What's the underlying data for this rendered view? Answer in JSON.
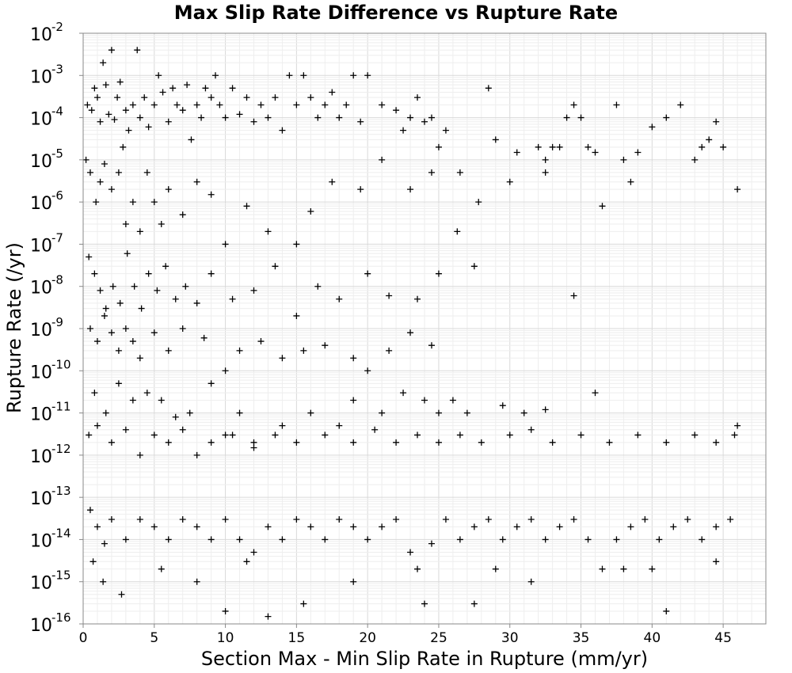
{
  "chart_data": {
    "type": "scatter",
    "title": "Max Slip Rate Difference vs Rupture Rate",
    "xlabel": "Section Max - Min Slip Rate in Rupture (mm/yr)",
    "ylabel": "Rupture Rate (/yr)",
    "xlim": [
      0,
      48
    ],
    "ylim": [
      1e-16,
      0.01
    ],
    "yscale": "log",
    "grid": true,
    "marker": "plus",
    "marker_color": "#000000",
    "x_ticks": [
      0,
      5,
      10,
      15,
      20,
      25,
      30,
      35,
      40,
      45
    ],
    "x_tick_labels": [
      "0",
      "5",
      "10",
      "15",
      "20",
      "25",
      "30",
      "35",
      "40",
      "45"
    ],
    "y_ticks": [
      {
        "value": 0.01,
        "base": "10",
        "exp": "-2"
      },
      {
        "value": 0.001,
        "base": "10",
        "exp": "-3"
      },
      {
        "value": 0.0001,
        "base": "10",
        "exp": "-4"
      },
      {
        "value": 1e-05,
        "base": "10",
        "exp": "-5"
      },
      {
        "value": 1e-06,
        "base": "10",
        "exp": "-6"
      },
      {
        "value": 1e-07,
        "base": "10",
        "exp": "-7"
      },
      {
        "value": 1e-08,
        "base": "10",
        "exp": "-8"
      },
      {
        "value": 1e-09,
        "base": "10",
        "exp": "-9"
      },
      {
        "value": 1e-10,
        "base": "10",
        "exp": "-10"
      },
      {
        "value": 1e-11,
        "base": "10",
        "exp": "-11"
      },
      {
        "value": 1e-12,
        "base": "10",
        "exp": "-12"
      },
      {
        "value": 1e-13,
        "base": "10",
        "exp": "-13"
      },
      {
        "value": 1e-14,
        "base": "10",
        "exp": "-14"
      },
      {
        "value": 1e-15,
        "base": "10",
        "exp": "-15"
      },
      {
        "value": 1e-16,
        "base": "10",
        "exp": "-16"
      }
    ],
    "points": [
      [
        0.3,
        0.0002
      ],
      [
        0.6,
        0.00015
      ],
      [
        0.8,
        0.0005
      ],
      [
        1.0,
        0.0003
      ],
      [
        1.2,
        8e-05
      ],
      [
        1.4,
        0.002
      ],
      [
        1.6,
        0.0006
      ],
      [
        1.8,
        0.00012
      ],
      [
        2.0,
        0.004
      ],
      [
        2.2,
        9e-05
      ],
      [
        2.4,
        0.0003
      ],
      [
        2.6,
        0.0007
      ],
      [
        2.8,
        2e-05
      ],
      [
        3.0,
        0.00015
      ],
      [
        3.2,
        5e-05
      ],
      [
        3.5,
        0.0002
      ],
      [
        3.8,
        0.004
      ],
      [
        4.0,
        0.0001
      ],
      [
        4.3,
        0.0003
      ],
      [
        4.6,
        6e-05
      ],
      [
        5.0,
        0.0002
      ],
      [
        5.3,
        0.001
      ],
      [
        5.6,
        0.0004
      ],
      [
        6.0,
        8e-05
      ],
      [
        6.3,
        0.0005
      ],
      [
        6.6,
        0.0002
      ],
      [
        7.0,
        0.00015
      ],
      [
        7.3,
        0.0006
      ],
      [
        7.6,
        3e-05
      ],
      [
        8.0,
        0.0002
      ],
      [
        8.3,
        0.0001
      ],
      [
        8.6,
        0.0005
      ],
      [
        9.0,
        0.0003
      ],
      [
        9.3,
        0.001
      ],
      [
        9.6,
        0.0002
      ],
      [
        10.0,
        0.0001
      ],
      [
        10.5,
        0.0005
      ],
      [
        11.0,
        0.00012
      ],
      [
        11.5,
        0.0003
      ],
      [
        12.0,
        8e-05
      ],
      [
        12.5,
        0.0002
      ],
      [
        13.0,
        0.0001
      ],
      [
        13.5,
        0.0003
      ],
      [
        14.0,
        5e-05
      ],
      [
        14.5,
        0.001
      ],
      [
        15.0,
        0.0002
      ],
      [
        15.5,
        0.001
      ],
      [
        16.0,
        0.0003
      ],
      [
        16.5,
        0.0001
      ],
      [
        17.0,
        0.0002
      ],
      [
        17.5,
        0.0004
      ],
      [
        18.0,
        0.0001
      ],
      [
        18.5,
        0.0002
      ],
      [
        19.0,
        0.001
      ],
      [
        19.5,
        8e-05
      ],
      [
        20.0,
        0.001
      ],
      [
        21.0,
        0.0002
      ],
      [
        22.0,
        0.00015
      ],
      [
        22.5,
        5e-05
      ],
      [
        23.0,
        0.0001
      ],
      [
        23.5,
        0.0003
      ],
      [
        24.0,
        8e-05
      ],
      [
        24.5,
        0.0001
      ],
      [
        25.0,
        2e-05
      ],
      [
        25.5,
        5e-05
      ],
      [
        26.5,
        5e-06
      ],
      [
        28.5,
        0.0005
      ],
      [
        29.0,
        3e-05
      ],
      [
        30.5,
        1.5e-05
      ],
      [
        32.0,
        2e-05
      ],
      [
        32.5,
        1e-05
      ],
      [
        33.0,
        2e-05
      ],
      [
        33.5,
        2e-05
      ],
      [
        34.0,
        0.0001
      ],
      [
        34.5,
        0.0002
      ],
      [
        35.0,
        0.0001
      ],
      [
        35.5,
        2e-05
      ],
      [
        36.0,
        1.5e-05
      ],
      [
        37.5,
        0.0002
      ],
      [
        38.0,
        1e-05
      ],
      [
        39.0,
        1.5e-05
      ],
      [
        40.0,
        6e-05
      ],
      [
        41.0,
        0.0001
      ],
      [
        42.0,
        0.0002
      ],
      [
        43.0,
        1e-05
      ],
      [
        43.5,
        2e-05
      ],
      [
        44.0,
        3e-05
      ],
      [
        44.5,
        8e-05
      ],
      [
        45.0,
        2e-05
      ],
      [
        46.0,
        2e-06
      ],
      [
        0.2,
        1e-05
      ],
      [
        0.5,
        5e-06
      ],
      [
        0.9,
        1e-06
      ],
      [
        1.2,
        3e-06
      ],
      [
        1.5,
        8e-06
      ],
      [
        2.0,
        2e-06
      ],
      [
        2.5,
        5e-06
      ],
      [
        3.0,
        3e-07
      ],
      [
        3.5,
        1e-06
      ],
      [
        4.0,
        2e-07
      ],
      [
        4.5,
        5e-06
      ],
      [
        5.0,
        1e-06
      ],
      [
        5.5,
        3e-07
      ],
      [
        6.0,
        2e-06
      ],
      [
        7.0,
        5e-07
      ],
      [
        8.0,
        3e-06
      ],
      [
        9.0,
        1.5e-06
      ],
      [
        10.0,
        1e-07
      ],
      [
        11.5,
        8e-07
      ],
      [
        13.0,
        2e-07
      ],
      [
        15.0,
        1e-07
      ],
      [
        16.0,
        6e-07
      ],
      [
        17.5,
        3e-06
      ],
      [
        19.5,
        2e-06
      ],
      [
        21.0,
        1e-05
      ],
      [
        23.0,
        2e-06
      ],
      [
        24.5,
        5e-06
      ],
      [
        26.3,
        2e-07
      ],
      [
        27.8,
        1e-06
      ],
      [
        30.0,
        3e-06
      ],
      [
        32.5,
        5e-06
      ],
      [
        36.5,
        8e-07
      ],
      [
        38.5,
        3e-06
      ],
      [
        0.4,
        5e-08
      ],
      [
        0.8,
        2e-08
      ],
      [
        1.2,
        8e-09
      ],
      [
        1.6,
        3e-09
      ],
      [
        2.1,
        1e-08
      ],
      [
        2.6,
        4e-09
      ],
      [
        3.1,
        6e-08
      ],
      [
        3.6,
        1e-08
      ],
      [
        4.1,
        3e-09
      ],
      [
        4.6,
        2e-08
      ],
      [
        5.2,
        8e-09
      ],
      [
        5.8,
        3e-08
      ],
      [
        6.5,
        5e-09
      ],
      [
        7.2,
        1e-08
      ],
      [
        8.0,
        4e-09
      ],
      [
        9.0,
        2e-08
      ],
      [
        10.5,
        5e-09
      ],
      [
        12.0,
        8e-09
      ],
      [
        13.5,
        3e-08
      ],
      [
        15.0,
        2e-09
      ],
      [
        16.5,
        1e-08
      ],
      [
        18.0,
        5e-09
      ],
      [
        20.0,
        2e-08
      ],
      [
        21.5,
        6e-09
      ],
      [
        23.5,
        5e-09
      ],
      [
        25.0,
        2e-08
      ],
      [
        27.5,
        3e-08
      ],
      [
        34.5,
        6e-09
      ],
      [
        0.5,
        1e-09
      ],
      [
        1.0,
        5e-10
      ],
      [
        1.5,
        2e-09
      ],
      [
        2.0,
        8e-10
      ],
      [
        2.5,
        3e-10
      ],
      [
        3.0,
        1e-09
      ],
      [
        3.5,
        5e-10
      ],
      [
        4.0,
        2e-10
      ],
      [
        5.0,
        8e-10
      ],
      [
        6.0,
        3e-10
      ],
      [
        7.0,
        1e-09
      ],
      [
        8.5,
        6e-10
      ],
      [
        10.0,
        1e-10
      ],
      [
        11.0,
        3e-10
      ],
      [
        12.5,
        5e-10
      ],
      [
        14.0,
        2e-10
      ],
      [
        15.5,
        3e-10
      ],
      [
        17.0,
        4e-10
      ],
      [
        19.0,
        2e-10
      ],
      [
        20.0,
        1e-10
      ],
      [
        21.5,
        3e-10
      ],
      [
        23.0,
        8e-10
      ],
      [
        24.5,
        4e-10
      ],
      [
        0.8,
        3e-11
      ],
      [
        1.6,
        1e-11
      ],
      [
        2.5,
        5e-11
      ],
      [
        3.5,
        2e-11
      ],
      [
        4.5,
        3e-11
      ],
      [
        5.5,
        2e-11
      ],
      [
        6.5,
        8e-12
      ],
      [
        7.5,
        1e-11
      ],
      [
        9.0,
        5e-11
      ],
      [
        10.0,
        3e-12
      ],
      [
        11.0,
        1e-11
      ],
      [
        12.0,
        2e-12
      ],
      [
        14.0,
        5e-12
      ],
      [
        16.0,
        1e-11
      ],
      [
        18.0,
        5e-12
      ],
      [
        19.0,
        2e-11
      ],
      [
        21.0,
        1e-11
      ],
      [
        22.5,
        3e-11
      ],
      [
        24.0,
        2e-11
      ],
      [
        25.0,
        1e-11
      ],
      [
        26.0,
        2e-11
      ],
      [
        27.0,
        1e-11
      ],
      [
        29.5,
        1.5e-11
      ],
      [
        31.0,
        1e-11
      ],
      [
        32.5,
        1.2e-11
      ],
      [
        36.0,
        3e-11
      ],
      [
        0.4,
        3e-12
      ],
      [
        1.0,
        5e-12
      ],
      [
        2.0,
        2e-12
      ],
      [
        3.0,
        4e-12
      ],
      [
        4.0,
        1e-12
      ],
      [
        5.0,
        3e-12
      ],
      [
        6.0,
        2e-12
      ],
      [
        7.0,
        4e-12
      ],
      [
        8.0,
        1e-12
      ],
      [
        9.0,
        2e-12
      ],
      [
        10.5,
        3e-12
      ],
      [
        12.0,
        1.5e-12
      ],
      [
        13.5,
        3e-12
      ],
      [
        15.0,
        2e-12
      ],
      [
        17.0,
        3e-12
      ],
      [
        19.0,
        2e-12
      ],
      [
        20.5,
        4e-12
      ],
      [
        22.0,
        2e-12
      ],
      [
        23.5,
        3e-12
      ],
      [
        25.0,
        2e-12
      ],
      [
        26.5,
        3e-12
      ],
      [
        28.0,
        2e-12
      ],
      [
        30.0,
        3e-12
      ],
      [
        31.5,
        4e-12
      ],
      [
        33.0,
        2e-12
      ],
      [
        35.0,
        3e-12
      ],
      [
        37.0,
        2e-12
      ],
      [
        39.0,
        3e-12
      ],
      [
        41.0,
        2e-12
      ],
      [
        43.0,
        3e-12
      ],
      [
        44.5,
        2e-12
      ],
      [
        45.8,
        3e-12
      ],
      [
        46.0,
        5e-12
      ],
      [
        0.5,
        5e-14
      ],
      [
        1.0,
        2e-14
      ],
      [
        1.5,
        8e-15
      ],
      [
        2.0,
        3e-14
      ],
      [
        3.0,
        1e-14
      ],
      [
        4.0,
        3e-14
      ],
      [
        5.0,
        2e-14
      ],
      [
        6.0,
        1e-14
      ],
      [
        7.0,
        3e-14
      ],
      [
        8.0,
        2e-14
      ],
      [
        9.0,
        1e-14
      ],
      [
        10.0,
        3e-14
      ],
      [
        11.0,
        1e-14
      ],
      [
        11.5,
        3e-15
      ],
      [
        12.0,
        5e-15
      ],
      [
        13.0,
        2e-14
      ],
      [
        14.0,
        1e-14
      ],
      [
        15.0,
        3e-14
      ],
      [
        16.0,
        2e-14
      ],
      [
        17.0,
        1e-14
      ],
      [
        18.0,
        3e-14
      ],
      [
        19.0,
        2e-14
      ],
      [
        20.0,
        1e-14
      ],
      [
        21.0,
        2e-14
      ],
      [
        22.0,
        3e-14
      ],
      [
        23.0,
        5e-15
      ],
      [
        23.5,
        2e-15
      ],
      [
        24.5,
        8e-15
      ],
      [
        25.5,
        3e-14
      ],
      [
        26.5,
        1e-14
      ],
      [
        27.5,
        2e-14
      ],
      [
        28.5,
        3e-14
      ],
      [
        29.5,
        1e-14
      ],
      [
        30.5,
        2e-14
      ],
      [
        31.5,
        3e-14
      ],
      [
        32.5,
        1e-14
      ],
      [
        33.5,
        2e-14
      ],
      [
        34.5,
        3e-14
      ],
      [
        35.5,
        1e-14
      ],
      [
        36.5,
        2e-15
      ],
      [
        37.5,
        1e-14
      ],
      [
        38.5,
        2e-14
      ],
      [
        39.5,
        3e-14
      ],
      [
        40.5,
        1e-14
      ],
      [
        41.5,
        2e-14
      ],
      [
        42.5,
        3e-14
      ],
      [
        43.5,
        1e-14
      ],
      [
        44.5,
        2e-14
      ],
      [
        45.5,
        3e-14
      ],
      [
        0.7,
        3e-15
      ],
      [
        1.4,
        1e-15
      ],
      [
        2.7,
        5e-16
      ],
      [
        5.5,
        2e-15
      ],
      [
        8.0,
        1e-15
      ],
      [
        10.0,
        2e-16
      ],
      [
        13.0,
        1.5e-16
      ],
      [
        15.5,
        3e-16
      ],
      [
        19.0,
        1e-15
      ],
      [
        24.0,
        3e-16
      ],
      [
        27.5,
        3e-16
      ],
      [
        29.0,
        2e-15
      ],
      [
        31.5,
        1e-15
      ],
      [
        38.0,
        2e-15
      ],
      [
        40.0,
        2e-15
      ],
      [
        41.0,
        2e-16
      ],
      [
        44.5,
        3e-15
      ]
    ]
  }
}
